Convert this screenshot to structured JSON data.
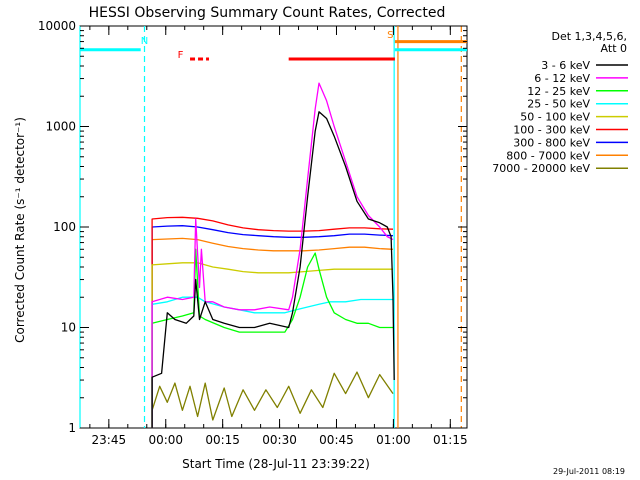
{
  "chart_data": {
    "type": "line",
    "title": "HESSI Observing Summary Count Rates, Corrected",
    "xlabel": "Start Time (28-Jul-11 23:39:22)",
    "ylabel": "Corrected Count Rate (s⁻¹ detector⁻¹)",
    "yscale": "log",
    "ylim": [
      1,
      10000
    ],
    "xlim_minutes_from_start": [
      -2,
      100
    ],
    "x_tick_labels": [
      "23:45",
      "00:00",
      "00:15",
      "00:30",
      "00:45",
      "01:00",
      "01:15"
    ],
    "x_tick_minutes_from_start": [
      5.6,
      20.6,
      35.6,
      50.6,
      65.6,
      80.6,
      95.6
    ],
    "y_tick_labels": [
      "1",
      "10",
      "100",
      "1000",
      "10000"
    ],
    "y_tick_values": [
      1,
      10,
      100,
      1000,
      10000
    ],
    "legend_header": [
      "Det 1,3,4,5,6,",
      "Att 0"
    ],
    "legend_position": "right",
    "footer_date": "29-Jul-2011 08:19",
    "series": [
      {
        "name": "3 - 6 keV",
        "color": "#000000",
        "points": [
          [
            17,
            3.2
          ],
          [
            19.5,
            3.5
          ],
          [
            21,
            14
          ],
          [
            23,
            12
          ],
          [
            26,
            11
          ],
          [
            28,
            13
          ],
          [
            28.5,
            30
          ],
          [
            29.5,
            12
          ],
          [
            31,
            18
          ],
          [
            33,
            12
          ],
          [
            36,
            11
          ],
          [
            40,
            10
          ],
          [
            44,
            10
          ],
          [
            48,
            11
          ],
          [
            53,
            10
          ],
          [
            54,
            14
          ],
          [
            56,
            40
          ],
          [
            58,
            200
          ],
          [
            60,
            900
          ],
          [
            61,
            1400
          ],
          [
            63,
            1200
          ],
          [
            65,
            800
          ],
          [
            68,
            400
          ],
          [
            71,
            180
          ],
          [
            74,
            120
          ],
          [
            77,
            110
          ],
          [
            79,
            100
          ],
          [
            80,
            80
          ],
          [
            80.5,
            20
          ],
          [
            80.8,
            3
          ]
        ]
      },
      {
        "name": "6 - 12 keV",
        "color": "#ff00ff",
        "points": [
          [
            17,
            18
          ],
          [
            21,
            20
          ],
          [
            25,
            19
          ],
          [
            28,
            20
          ],
          [
            28.5,
            120
          ],
          [
            29.5,
            25
          ],
          [
            30,
            60
          ],
          [
            31,
            18
          ],
          [
            33,
            18
          ],
          [
            36,
            16
          ],
          [
            40,
            15
          ],
          [
            44,
            15
          ],
          [
            48,
            16
          ],
          [
            53,
            15
          ],
          [
            54,
            20
          ],
          [
            56,
            60
          ],
          [
            58,
            300
          ],
          [
            60,
            1500
          ],
          [
            61,
            2700
          ],
          [
            63,
            1800
          ],
          [
            65,
            1000
          ],
          [
            68,
            450
          ],
          [
            71,
            200
          ],
          [
            74,
            130
          ],
          [
            77,
            100
          ],
          [
            79,
            80
          ],
          [
            80.5,
            75
          ]
        ]
      },
      {
        "name": "12 - 25 keV",
        "color": "#00ff00",
        "points": [
          [
            17,
            11
          ],
          [
            21,
            12
          ],
          [
            25,
            13
          ],
          [
            28,
            14
          ],
          [
            28.5,
            60
          ],
          [
            29.5,
            13
          ],
          [
            31,
            12
          ],
          [
            36,
            10
          ],
          [
            40,
            9
          ],
          [
            44,
            9
          ],
          [
            48,
            9
          ],
          [
            52,
            9
          ],
          [
            54,
            12
          ],
          [
            56,
            20
          ],
          [
            58,
            40
          ],
          [
            60,
            55
          ],
          [
            61,
            38
          ],
          [
            63,
            20
          ],
          [
            65,
            14
          ],
          [
            68,
            12
          ],
          [
            71,
            11
          ],
          [
            74,
            11
          ],
          [
            77,
            10
          ],
          [
            80.5,
            10
          ]
        ]
      },
      {
        "name": "25 - 50 keV",
        "color": "#00ffff",
        "points": [
          [
            17,
            17
          ],
          [
            21,
            18
          ],
          [
            25,
            20
          ],
          [
            29,
            20
          ],
          [
            31,
            18
          ],
          [
            36,
            16
          ],
          [
            40,
            15
          ],
          [
            44,
            14
          ],
          [
            48,
            14
          ],
          [
            52,
            14
          ],
          [
            55,
            15
          ],
          [
            58,
            16
          ],
          [
            61,
            17
          ],
          [
            64,
            18
          ],
          [
            68,
            18
          ],
          [
            72,
            19
          ],
          [
            76,
            19
          ],
          [
            80.5,
            19
          ]
        ]
      },
      {
        "name": "50 - 100 keV",
        "color": "#cccc00",
        "points": [
          [
            17,
            42
          ],
          [
            21,
            43
          ],
          [
            25,
            44
          ],
          [
            29,
            44
          ],
          [
            33,
            40
          ],
          [
            37,
            38
          ],
          [
            41,
            36
          ],
          [
            45,
            35
          ],
          [
            49,
            35
          ],
          [
            53,
            35
          ],
          [
            57,
            36
          ],
          [
            61,
            37
          ],
          [
            65,
            38
          ],
          [
            69,
            38
          ],
          [
            73,
            38
          ],
          [
            77,
            38
          ],
          [
            80.5,
            38
          ]
        ]
      },
      {
        "name": "100 - 300 keV",
        "color": "#ff0000",
        "points": [
          [
            17,
            120
          ],
          [
            21,
            124
          ],
          [
            25,
            125
          ],
          [
            29,
            122
          ],
          [
            33,
            115
          ],
          [
            37,
            105
          ],
          [
            41,
            98
          ],
          [
            45,
            94
          ],
          [
            49,
            92
          ],
          [
            53,
            91
          ],
          [
            57,
            91
          ],
          [
            61,
            92
          ],
          [
            65,
            95
          ],
          [
            69,
            98
          ],
          [
            73,
            98
          ],
          [
            77,
            96
          ],
          [
            80.5,
            95
          ]
        ]
      },
      {
        "name": "300 - 800 keV",
        "color": "#0000ff",
        "points": [
          [
            17,
            100
          ],
          [
            21,
            102
          ],
          [
            25,
            103
          ],
          [
            29,
            100
          ],
          [
            33,
            94
          ],
          [
            37,
            88
          ],
          [
            41,
            84
          ],
          [
            45,
            82
          ],
          [
            49,
            80
          ],
          [
            53,
            79
          ],
          [
            57,
            79
          ],
          [
            61,
            80
          ],
          [
            65,
            82
          ],
          [
            69,
            85
          ],
          [
            73,
            85
          ],
          [
            77,
            83
          ],
          [
            80.5,
            82
          ]
        ]
      },
      {
        "name": "800 - 7000 keV",
        "color": "#ff8000",
        "points": [
          [
            17,
            75
          ],
          [
            21,
            76
          ],
          [
            25,
            77
          ],
          [
            29,
            75
          ],
          [
            33,
            69
          ],
          [
            37,
            64
          ],
          [
            41,
            61
          ],
          [
            45,
            59
          ],
          [
            49,
            58
          ],
          [
            53,
            58
          ],
          [
            57,
            58
          ],
          [
            61,
            59
          ],
          [
            65,
            61
          ],
          [
            69,
            63
          ],
          [
            73,
            63
          ],
          [
            77,
            61
          ],
          [
            80.5,
            60
          ]
        ]
      },
      {
        "name": "7000 - 20000 keV",
        "color": "#808000",
        "points": [
          [
            17,
            1.5
          ],
          [
            19,
            2.6
          ],
          [
            21,
            1.8
          ],
          [
            23,
            2.8
          ],
          [
            25,
            1.5
          ],
          [
            27,
            2.6
          ],
          [
            29,
            1.3
          ],
          [
            31,
            2.8
          ],
          [
            33,
            1.2
          ],
          [
            36,
            2.5
          ],
          [
            38,
            1.3
          ],
          [
            41,
            2.4
          ],
          [
            44,
            1.5
          ],
          [
            47,
            2.4
          ],
          [
            50,
            1.6
          ],
          [
            53,
            2.6
          ],
          [
            56,
            1.4
          ],
          [
            59,
            2.4
          ],
          [
            62,
            1.6
          ],
          [
            65,
            3.5
          ],
          [
            68,
            2.2
          ],
          [
            71,
            3.6
          ],
          [
            74,
            2.0
          ],
          [
            77,
            3.4
          ],
          [
            80.5,
            2.2
          ]
        ]
      }
    ],
    "attenuator_bars": [
      {
        "start": -2,
        "end": 14,
        "value": 5800,
        "color": "#00ffff"
      },
      {
        "start": 81,
        "end": 100,
        "value": 5800,
        "color": "#00ffff"
      },
      {
        "start": 81,
        "end": 100,
        "value": 7000,
        "color": "#ff8000"
      }
    ],
    "flare_bars": [
      {
        "start": 27,
        "end": 32,
        "value": 4700,
        "color": "#ff0000",
        "dashed": true
      },
      {
        "start": 53,
        "end": 81,
        "value": 4700,
        "color": "#ff0000",
        "dashed": false
      }
    ],
    "markers": [
      {
        "label": "N",
        "x": 15.0,
        "value": 6600,
        "color": "#00ffff"
      },
      {
        "label": "F",
        "x": 24.5,
        "value": 4800,
        "color": "#ff0000"
      },
      {
        "label": "S",
        "x": 79.8,
        "value": 7600,
        "color": "#ff8000"
      }
    ],
    "vertical_lines": [
      {
        "x": -2,
        "color": "#00ffff",
        "dashed": false
      },
      {
        "x": 15.0,
        "color": "#00ffff",
        "dashed": true
      },
      {
        "x": 80.8,
        "color": "#00ffff",
        "dashed": false
      },
      {
        "x": 81.8,
        "color": "#ff8000",
        "dashed": false
      },
      {
        "x": 98.5,
        "color": "#ff8000",
        "dashed": true
      }
    ],
    "grid": false
  }
}
